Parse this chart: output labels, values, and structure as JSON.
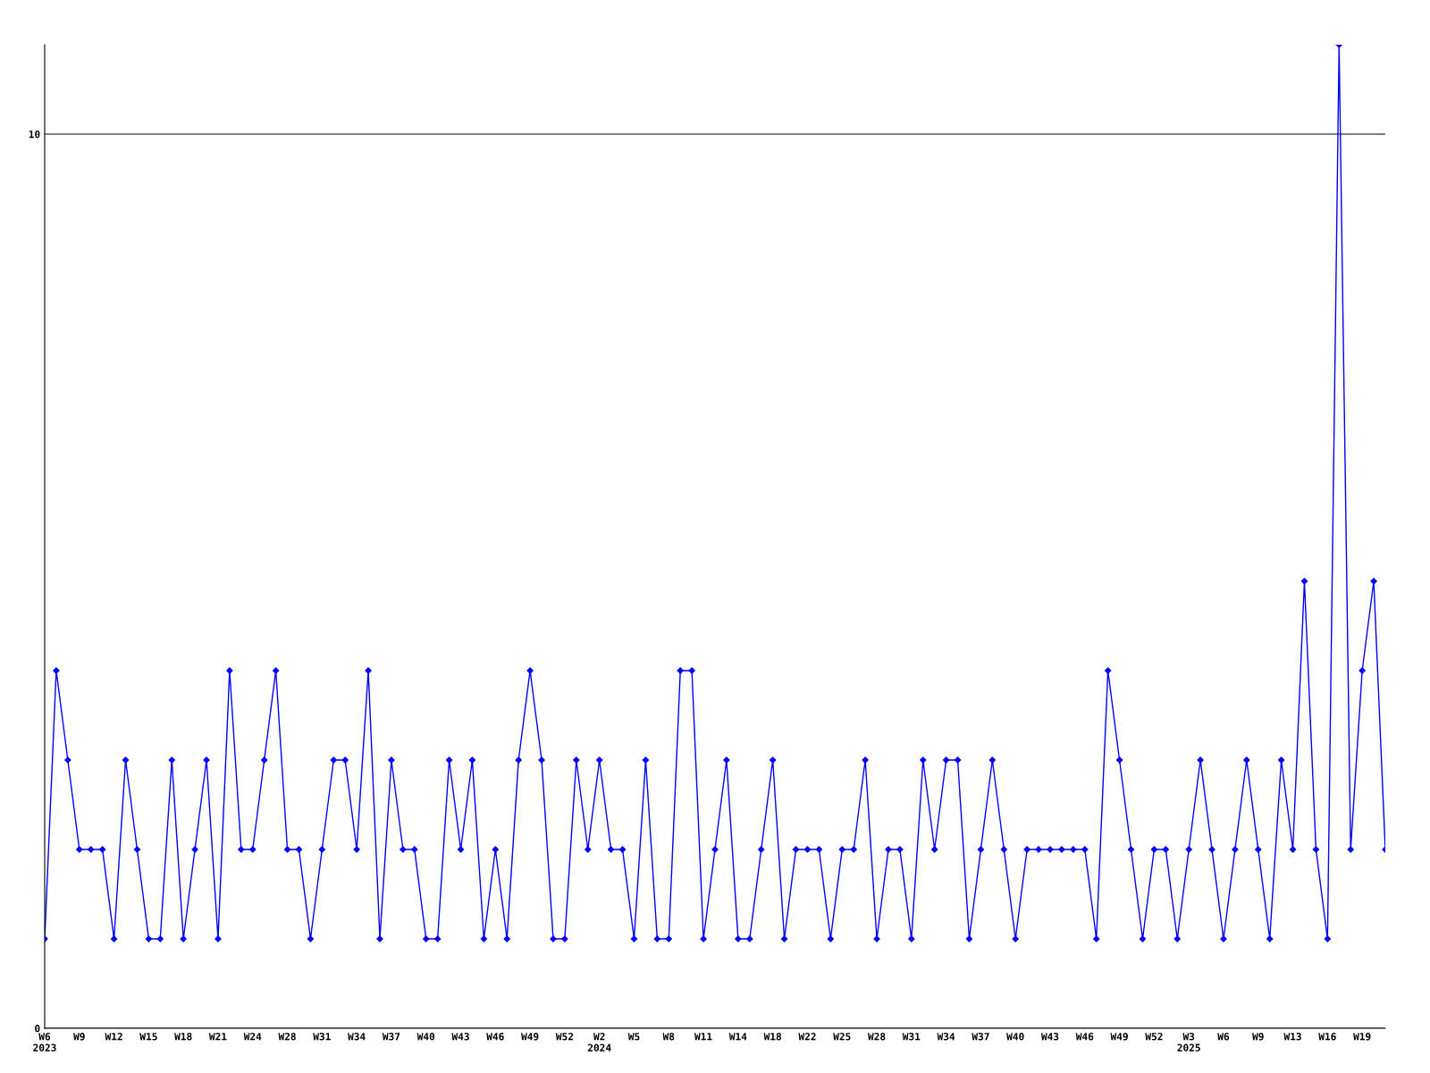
{
  "chart_data": {
    "type": "line",
    "categories": [
      "W6\n2023",
      null,
      null,
      "W9",
      null,
      null,
      "W12",
      null,
      null,
      "W15",
      null,
      null,
      "W18",
      null,
      null,
      "W21",
      null,
      null,
      "W24",
      null,
      null,
      "W28",
      null,
      null,
      "W31",
      null,
      null,
      "W34",
      null,
      null,
      "W37",
      null,
      null,
      "W40",
      null,
      null,
      "W43",
      null,
      null,
      "W46",
      null,
      null,
      "W49",
      null,
      null,
      "W52",
      null,
      null,
      "W2\n2024",
      null,
      null,
      "W5",
      null,
      null,
      "W8",
      null,
      null,
      "W11",
      null,
      null,
      "W14",
      null,
      null,
      "W18",
      null,
      null,
      "W22",
      null,
      null,
      "W25",
      null,
      null,
      "W28",
      null,
      null,
      "W31",
      null,
      null,
      "W34",
      null,
      null,
      "W37",
      null,
      null,
      "W40",
      null,
      null,
      "W43",
      null,
      null,
      "W46",
      null,
      null,
      "W49",
      null,
      null,
      "W52",
      null,
      null,
      "W3\n2025",
      null,
      null,
      "W6",
      null,
      null,
      "W9",
      null,
      null,
      "W13",
      null,
      null,
      "W16",
      null,
      null,
      "W19",
      null,
      null
    ],
    "series": [
      {
        "color": "#0000ff",
        "values": [
          1,
          4,
          3,
          2,
          2,
          2,
          1,
          3,
          2,
          1,
          1,
          3,
          1,
          2,
          3,
          1,
          4,
          2,
          2,
          3,
          4,
          2,
          2,
          1,
          2,
          3,
          3,
          2,
          4,
          1,
          3,
          2,
          2,
          1,
          1,
          3,
          2,
          3,
          1,
          2,
          1,
          3,
          4,
          3,
          1,
          1,
          3,
          2,
          3,
          2,
          2,
          1,
          3,
          1,
          1,
          4,
          4,
          1,
          2,
          3,
          1,
          1,
          2,
          3,
          1,
          2,
          2,
          2,
          1,
          2,
          2,
          3,
          1,
          2,
          2,
          1,
          3,
          2,
          3,
          3,
          1,
          2,
          3,
          2,
          1,
          2,
          2,
          2,
          2,
          2,
          2,
          1,
          4,
          3,
          2,
          1,
          2,
          2,
          1,
          2,
          3,
          2,
          1,
          2,
          3,
          2,
          1,
          3,
          2,
          5,
          2,
          1,
          11,
          2,
          4,
          5,
          2
        ]
      }
    ],
    "ylim": [
      0,
      11
    ],
    "yticks": [
      0,
      10
    ],
    "grid": "y",
    "marker": "diamond",
    "line_style": "solid",
    "legend": false
  }
}
